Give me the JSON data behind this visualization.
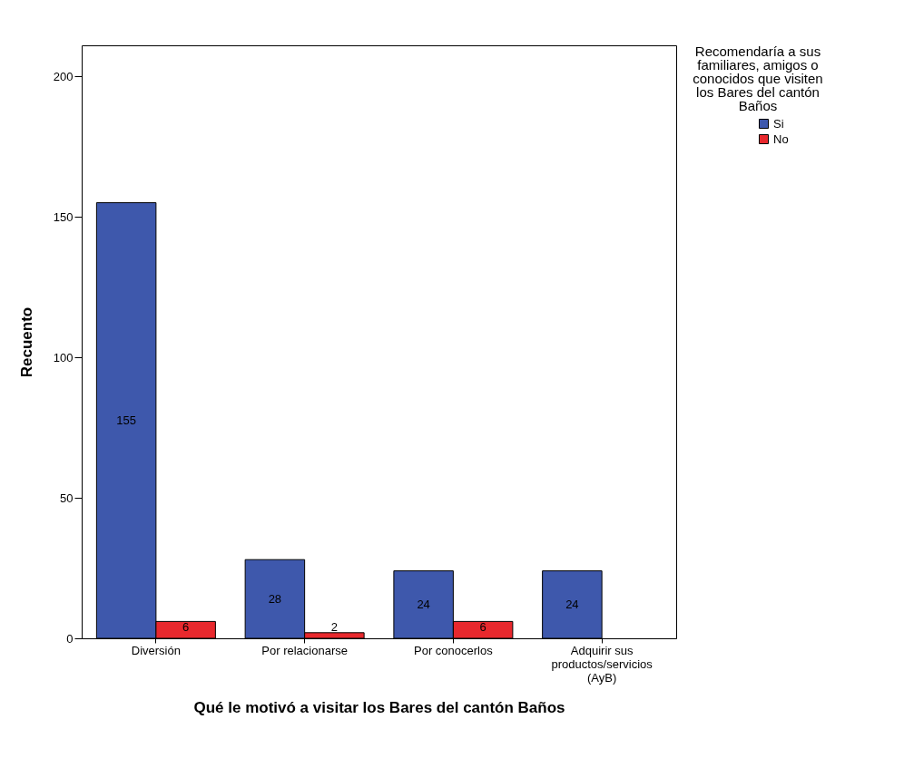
{
  "chart_data": {
    "type": "bar",
    "xlabel": "Qué le motivó a visitar los Bares del cantón Baños",
    "ylabel": "Recuento",
    "legend_title": "Recomendaría a sus familiares, amigos o conocidos que visiten los Bares del cantón Baños",
    "categories": [
      "Diversión",
      "Por relacionarse",
      "Por conocerlos",
      "Adquirir sus productos/servicios (AyB)"
    ],
    "series": [
      {
        "name": "Si",
        "color": "#3e58ac",
        "values": [
          155,
          28,
          24,
          24
        ]
      },
      {
        "name": "No",
        "color": "#e8282d",
        "values": [
          6,
          2,
          6,
          null
        ]
      }
    ],
    "ylim": [
      0,
      211
    ],
    "yticks": [
      0,
      50,
      100,
      150,
      200
    ],
    "grid": false,
    "legend": "top right",
    "data_labels": true
  }
}
